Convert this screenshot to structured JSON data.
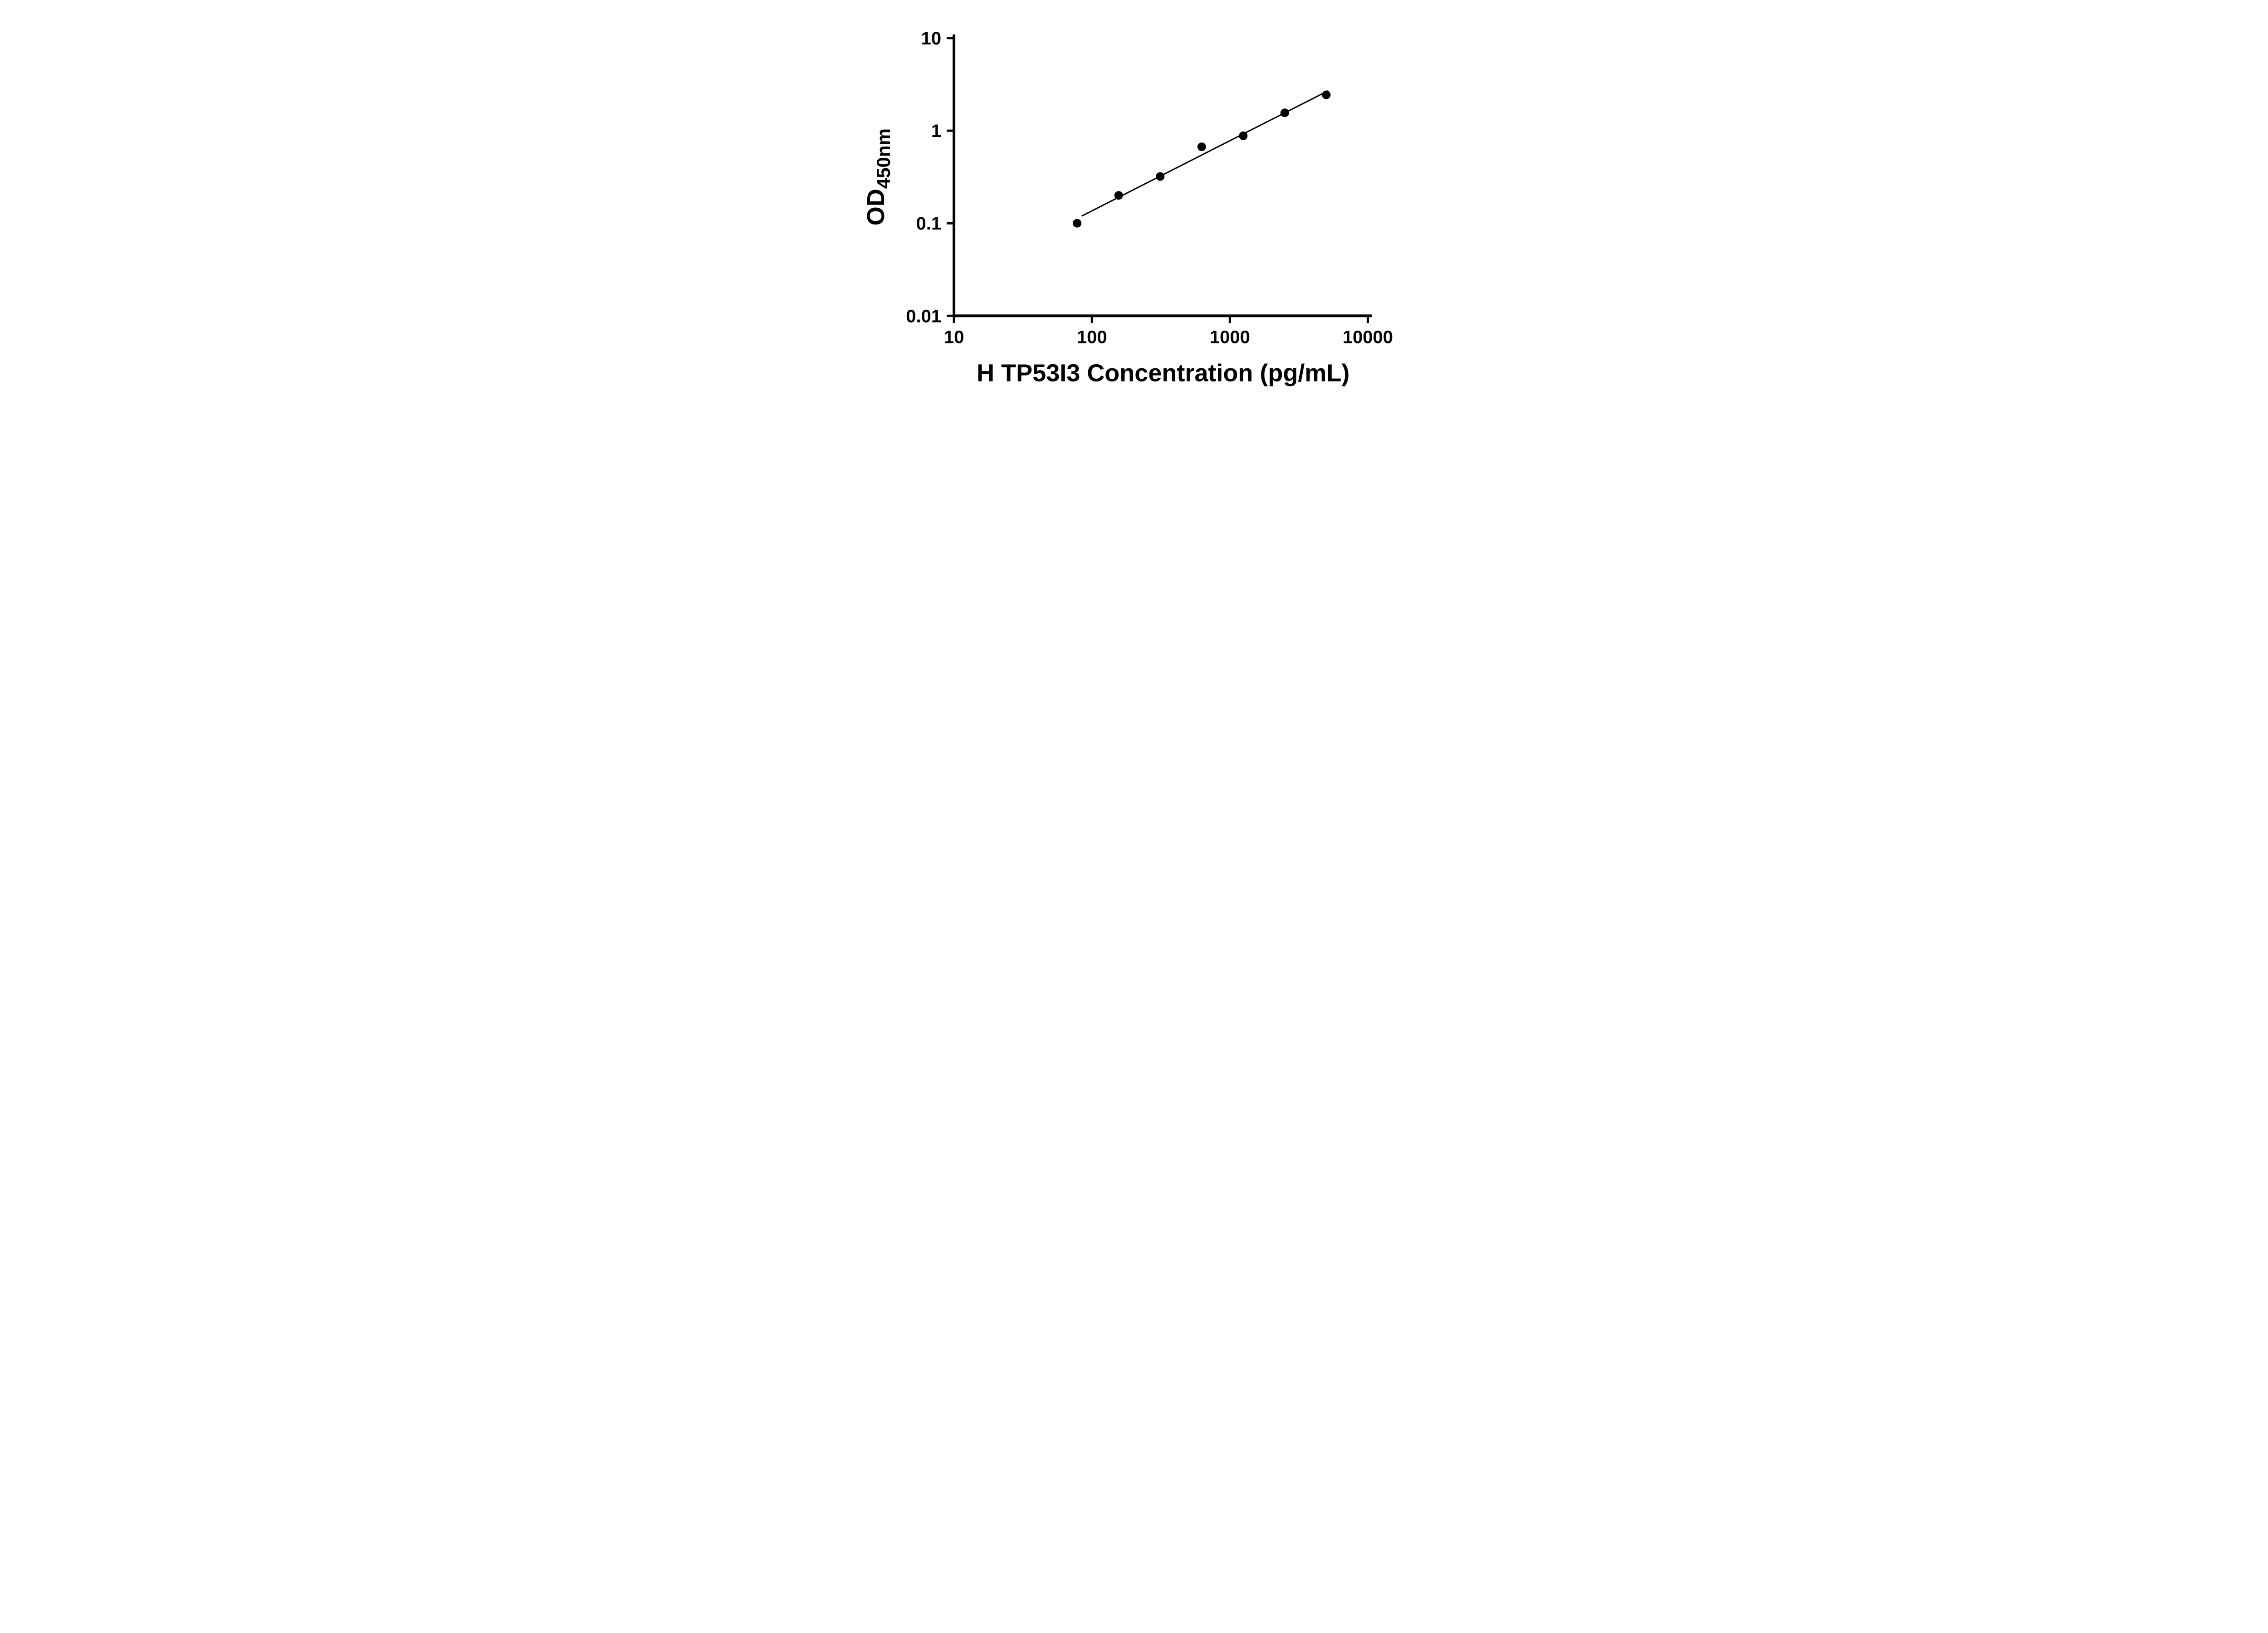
{
  "page": {
    "background": "#ffffff"
  },
  "chart_data": {
    "type": "scatter",
    "title": "",
    "xlabel": "H TP53I3 Concentration (pg/mL)",
    "ylabel_main": "OD",
    "ylabel_sub": "450nm",
    "x_scale": "log",
    "y_scale": "log",
    "xlim": [
      10,
      10000
    ],
    "ylim": [
      0.01,
      10
    ],
    "grid": false,
    "legend": null,
    "x_ticks": [
      {
        "value": 10,
        "label": "10"
      },
      {
        "value": 100,
        "label": "100"
      },
      {
        "value": 1000,
        "label": "1000"
      },
      {
        "value": 10000,
        "label": "10000"
      }
    ],
    "y_ticks": [
      {
        "value": 0.01,
        "label": "0.01"
      },
      {
        "value": 0.1,
        "label": "0.1"
      },
      {
        "value": 1,
        "label": "1"
      },
      {
        "value": 10,
        "label": "10"
      }
    ],
    "points": [
      {
        "x": 78.125,
        "y": 0.1
      },
      {
        "x": 156.25,
        "y": 0.2
      },
      {
        "x": 312.5,
        "y": 0.32
      },
      {
        "x": 625,
        "y": 0.67
      },
      {
        "x": 1250,
        "y": 0.88
      },
      {
        "x": 2500,
        "y": 1.56
      },
      {
        "x": 5000,
        "y": 2.44
      }
    ],
    "trendline": {
      "type": "linear-loglog-fit",
      "x_start": 85,
      "x_end": 5100
    },
    "colors": {
      "marker": "#000000",
      "line": "#000000",
      "axis": "#000000",
      "text": "#000000",
      "background": "#ffffff"
    }
  }
}
